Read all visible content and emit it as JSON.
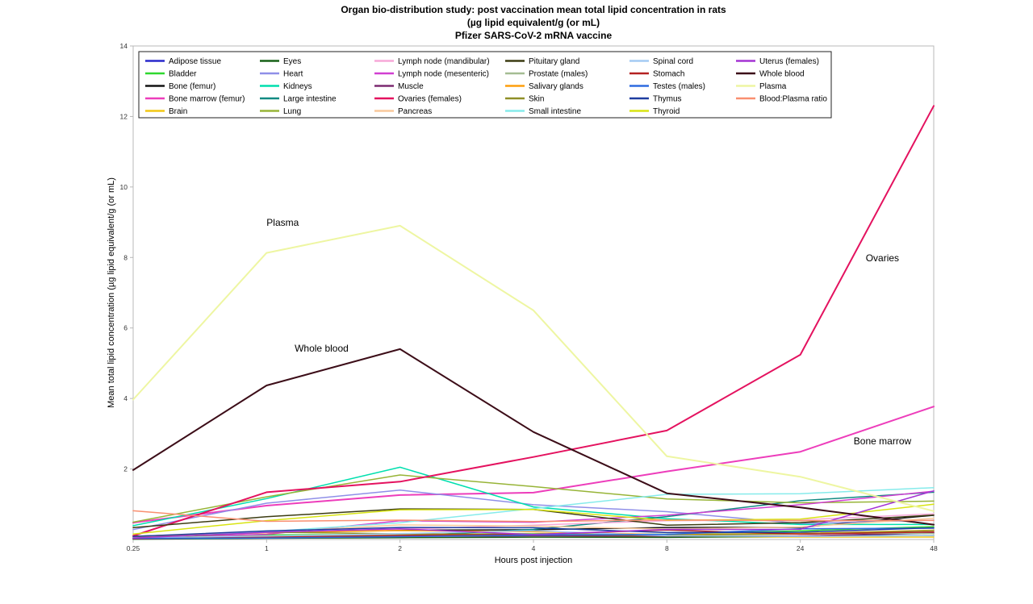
{
  "chart_data": {
    "type": "line",
    "title_lines": [
      "Organ bio-distribution study: post vaccination mean total lipid concentration in rats",
      "(µg lipid equivalent/g (or mL)",
      "Pfizer SARS-CoV-2 mRNA vaccine"
    ],
    "xlabel": "Hours post injection",
    "ylabel": "Mean total lipid concentration (µg lipid equivalent/g (or mL)",
    "x_categories": [
      "0.25",
      "1",
      "2",
      "4",
      "8",
      "24",
      "48"
    ],
    "ylim": [
      0,
      14
    ],
    "yticks": [
      2,
      4,
      6,
      8,
      10,
      12,
      14
    ],
    "grid": false,
    "legend_position": "top-left",
    "annotations": [
      {
        "text": "Plasma",
        "xi": 1.0,
        "y": 8.9
      },
      {
        "text": "Whole blood",
        "xi": 1.21,
        "y": 5.33
      },
      {
        "text": "Ovaries",
        "xi": 5.49,
        "y": 7.89
      },
      {
        "text": "Bone marrow",
        "xi": 5.4,
        "y": 2.7
      }
    ],
    "series": [
      {
        "name": "Adipose tissue",
        "color": "#2929cc",
        "lw": 1.5,
        "values": [
          0.057,
          0.1,
          0.126,
          0.128,
          0.093,
          0.084,
          0.181
        ]
      },
      {
        "name": "Bladder",
        "color": "#2fd82f",
        "lw": 1.5,
        "values": [
          0.041,
          0.13,
          0.146,
          0.167,
          0.148,
          0.247,
          0.365
        ]
      },
      {
        "name": "Bone (femur)",
        "color": "#141414",
        "lw": 1.5,
        "values": [
          0.091,
          0.195,
          0.266,
          0.276,
          0.34,
          0.342,
          0.687
        ]
      },
      {
        "name": "Bone marrow (femur)",
        "color": "#ed3dbb",
        "lw": 2,
        "values": [
          0.479,
          0.96,
          1.26,
          1.33,
          1.93,
          2.49,
          3.77
        ]
      },
      {
        "name": "Brain",
        "color": "#f2c714",
        "lw": 1.5,
        "values": [
          0.045,
          0.1,
          0.138,
          0.115,
          0.073,
          0.069,
          0.068
        ]
      },
      {
        "name": "Eyes",
        "color": "#176117",
        "lw": 1.5,
        "values": [
          0.01,
          0.035,
          0.052,
          0.067,
          0.059,
          0.091,
          0.112
        ]
      },
      {
        "name": "Heart",
        "color": "#8f8fe8",
        "lw": 1.5,
        "values": [
          0.282,
          1.03,
          1.4,
          0.987,
          0.79,
          0.451,
          0.546
        ]
      },
      {
        "name": "Kidneys",
        "color": "#00dfae",
        "lw": 1.5,
        "values": [
          0.391,
          1.16,
          2.05,
          0.924,
          0.59,
          0.426,
          0.425
        ]
      },
      {
        "name": "Large intestine",
        "color": "#128a82",
        "lw": 1.5,
        "values": [
          0.013,
          0.048,
          0.093,
          0.287,
          0.649,
          1.1,
          1.34
        ]
      },
      {
        "name": "Lung",
        "color": "#97b437",
        "lw": 1.5,
        "values": [
          0.492,
          1.21,
          1.83,
          1.5,
          1.15,
          1.04,
          1.09
        ]
      },
      {
        "name": "Lymph node (mandibular)",
        "color": "#f7a8d8",
        "lw": 1.5,
        "values": [
          0.064,
          0.189,
          0.29,
          0.408,
          0.534,
          0.554,
          0.727
        ]
      },
      {
        "name": "Lymph node (mesenteric)",
        "color": "#d13fd1",
        "lw": 1.5,
        "values": [
          0.05,
          0.146,
          0.53,
          0.489,
          0.689,
          0.985,
          1.37
        ]
      },
      {
        "name": "Muscle",
        "color": "#7c2a70",
        "lw": 1.5,
        "values": [
          0.021,
          0.061,
          0.084,
          0.103,
          0.096,
          0.095,
          0.192
        ]
      },
      {
        "name": "Ovaries (females)",
        "color": "#e4125f",
        "lw": 2,
        "values": [
          0.104,
          1.34,
          1.64,
          2.34,
          3.09,
          5.24,
          12.3
        ]
      },
      {
        "name": "Pancreas",
        "color": "#f9c99b",
        "lw": 1.5,
        "values": [
          0.081,
          0.207,
          0.414,
          0.38,
          0.294,
          0.358,
          0.599
        ]
      },
      {
        "name": "Pituitary gland",
        "color": "#3c3c12",
        "lw": 1.5,
        "values": [
          0.339,
          0.645,
          0.868,
          0.854,
          0.405,
          0.478,
          0.694
        ]
      },
      {
        "name": "Prostate (males)",
        "color": "#a4bd93",
        "lw": 1.5,
        "values": [
          0.061,
          0.091,
          0.128,
          0.157,
          0.15,
          0.183,
          0.17
        ]
      },
      {
        "name": "Salivary glands",
        "color": "#fe9f0c",
        "lw": 1.5,
        "values": [
          0.084,
          0.193,
          0.255,
          0.22,
          0.135,
          0.17,
          0.264
        ]
      },
      {
        "name": "Skin",
        "color": "#8f8f27",
        "lw": 1.5,
        "values": [
          0.013,
          0.208,
          0.159,
          0.145,
          0.119,
          0.157,
          0.253
        ]
      },
      {
        "name": "Small intestine",
        "color": "#86ebeb",
        "lw": 1.5,
        "values": [
          0.03,
          0.221,
          0.476,
          0.879,
          1.28,
          1.3,
          1.47
        ]
      },
      {
        "name": "Spinal cord",
        "color": "#a4cbf4",
        "lw": 1.5,
        "values": [
          0.043,
          0.097,
          0.169,
          0.25,
          0.106,
          0.085,
          0.112
        ]
      },
      {
        "name": "Stomach",
        "color": "#b42222",
        "lw": 1.5,
        "values": [
          0.017,
          0.065,
          0.115,
          0.144,
          0.268,
          0.152,
          0.215
        ]
      },
      {
        "name": "Testes (males)",
        "color": "#2e6ce0",
        "lw": 1.5,
        "values": [
          0.031,
          0.042,
          0.079,
          0.129,
          0.146,
          0.304,
          0.32
        ]
      },
      {
        "name": "Thymus",
        "color": "#1f3da0",
        "lw": 1.5,
        "values": [
          0.088,
          0.243,
          0.34,
          0.335,
          0.196,
          0.207,
          0.331
        ]
      },
      {
        "name": "Thyroid",
        "color": "#d8e412",
        "lw": 1.5,
        "values": [
          0.155,
          0.536,
          0.842,
          0.851,
          0.544,
          0.578,
          1.0
        ]
      },
      {
        "name": "Uterus (females)",
        "color": "#a433d4",
        "lw": 1.5,
        "values": [
          0.043,
          0.203,
          0.305,
          0.14,
          0.287,
          0.289,
          1.38
        ]
      },
      {
        "name": "Whole blood",
        "color": "#3c0d18",
        "lw": 2,
        "values": [
          1.97,
          4.37,
          5.4,
          3.05,
          1.31,
          0.909,
          0.42
        ]
      },
      {
        "name": "Plasma",
        "color": "#eef6a2",
        "lw": 2,
        "values": [
          3.97,
          8.13,
          8.9,
          6.5,
          2.36,
          1.78,
          0.805
        ]
      },
      {
        "name": "Blood:Plasma ratio",
        "color": "#f98f70",
        "lw": 1.5,
        "values": [
          0.815,
          0.515,
          0.55,
          0.51,
          0.555,
          0.53,
          0.54
        ]
      }
    ]
  }
}
